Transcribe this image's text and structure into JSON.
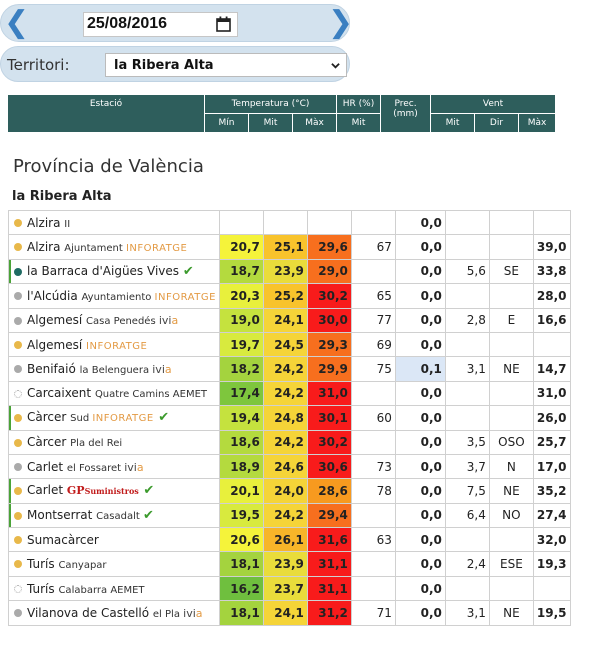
{
  "date": {
    "value": "25/08/2016"
  },
  "territory": {
    "label": "Territori:",
    "selected": "la Ribera Alta"
  },
  "header": {
    "station": "Estació",
    "temperature": "Temperatura (°C)",
    "humidity": "HR (%)",
    "precipitation": "Prec. (mm)",
    "wind": "Vent",
    "min": "Mín",
    "mid": "Mit",
    "max": "Màx",
    "hr_mid": "Mit",
    "wind_mid": "Mit",
    "wind_dir": "Dir",
    "wind_max": "Màx"
  },
  "province": "Província de València",
  "region": "la Ribera Alta",
  "colors": {
    "header_bg": "#2e5e5c",
    "bar_bg": "#d3e2ee",
    "accent": "#3a7fc1"
  },
  "rows": [
    {
      "name": "Alzira",
      "sub": "II",
      "src": "",
      "dot": "#e8b84a",
      "tmin": "",
      "tmit": "",
      "tmax": "",
      "hr": "",
      "prec": "0,0",
      "vm": "",
      "vd": "",
      "vx": "",
      "check": false
    },
    {
      "name": "Alzira",
      "sub": "Ajuntament",
      "src": "INFORATGE",
      "dot": "#e8b84a",
      "tmin": "20,7",
      "tmit": "25,1",
      "tmax": "29,6",
      "hr": "67",
      "prec": "0,0",
      "vm": "",
      "vd": "",
      "vx": "39,0",
      "check": false
    },
    {
      "name": "la Barraca d'Aigües Vives",
      "sub": "",
      "src": "",
      "dot": "#1f6b63",
      "tmin": "18,7",
      "tmit": "23,9",
      "tmax": "29,0",
      "hr": "",
      "prec": "0,0",
      "vm": "5,6",
      "vd": "SE",
      "vx": "33,8",
      "check": true
    },
    {
      "name": "l'Alcúdia",
      "sub": "Ayuntamiento",
      "src": "INFORATGE",
      "dot": "#aaaaaa",
      "tmin": "20,3",
      "tmit": "25,2",
      "tmax": "30,2",
      "hr": "65",
      "prec": "0,0",
      "vm": "",
      "vd": "",
      "vx": "28,0",
      "check": false
    },
    {
      "name": "Algemesí",
      "sub": "Casa Penedés",
      "src": "ivia",
      "dot": "#aaaaaa",
      "tmin": "19,0",
      "tmit": "24,1",
      "tmax": "30,0",
      "hr": "77",
      "prec": "0,0",
      "vm": "2,8",
      "vd": "E",
      "vx": "16,6",
      "check": false
    },
    {
      "name": "Algemesí",
      "sub": "",
      "src": "INFORATGE",
      "dot": "#e8b84a",
      "tmin": "19,7",
      "tmit": "24,5",
      "tmax": "29,3",
      "hr": "69",
      "prec": "0,0",
      "vm": "",
      "vd": "",
      "vx": "",
      "check": false
    },
    {
      "name": "Benifaió",
      "sub": "la Belenguera",
      "src": "ivia",
      "dot": "#aaaaaa",
      "tmin": "18,2",
      "tmit": "24,2",
      "tmax": "29,9",
      "hr": "75",
      "prec": "0,1",
      "vm": "3,1",
      "vd": "NE",
      "vx": "14,7",
      "check": false
    },
    {
      "name": "Carcaixent",
      "sub": "Quatre Camins",
      "src": "AEMET",
      "dot": "none",
      "tmin": "17,4",
      "tmit": "24,2",
      "tmax": "31,0",
      "hr": "",
      "prec": "0,0",
      "vm": "",
      "vd": "",
      "vx": "31,0",
      "check": false
    },
    {
      "name": "Càrcer",
      "sub": "Sud",
      "src": "INFORATGE",
      "dot": "#e8b84a",
      "tmin": "19,4",
      "tmit": "24,8",
      "tmax": "30,1",
      "hr": "60",
      "prec": "0,0",
      "vm": "",
      "vd": "",
      "vx": "26,0",
      "check": true
    },
    {
      "name": "Càrcer",
      "sub": "Pla del Rei",
      "src": "",
      "dot": "#e8b84a",
      "tmin": "18,6",
      "tmit": "24,2",
      "tmax": "30,2",
      "hr": "",
      "prec": "0,0",
      "vm": "3,5",
      "vd": "OSO",
      "vx": "25,7",
      "check": false
    },
    {
      "name": "Carlet",
      "sub": "el Fossaret",
      "src": "ivia",
      "dot": "#aaaaaa",
      "tmin": "18,9",
      "tmit": "24,6",
      "tmax": "30,6",
      "hr": "73",
      "prec": "0,0",
      "vm": "3,7",
      "vd": "N",
      "vx": "17,0",
      "check": false
    },
    {
      "name": "Carlet",
      "sub": "",
      "src": "GP",
      "dot": "#e8b84a",
      "tmin": "20,1",
      "tmit": "24,0",
      "tmax": "28,6",
      "hr": "78",
      "prec": "0,0",
      "vm": "7,5",
      "vd": "NE",
      "vx": "35,2",
      "check": true
    },
    {
      "name": "Montserrat",
      "sub": "Casadalt",
      "src": "",
      "dot": "#e8b84a",
      "tmin": "19,5",
      "tmit": "24,2",
      "tmax": "29,4",
      "hr": "",
      "prec": "0,0",
      "vm": "6,4",
      "vd": "NO",
      "vx": "27,4",
      "check": true
    },
    {
      "name": "Sumacàrcer",
      "sub": "",
      "src": "",
      "dot": "#e8b84a",
      "tmin": "20,6",
      "tmit": "26,1",
      "tmax": "31,6",
      "hr": "63",
      "prec": "0,0",
      "vm": "",
      "vd": "",
      "vx": "32,0",
      "check": false
    },
    {
      "name": "Turís",
      "sub": "Canyapar",
      "src": "",
      "dot": "#e8b84a",
      "tmin": "18,1",
      "tmit": "23,9",
      "tmax": "31,1",
      "hr": "",
      "prec": "0,0",
      "vm": "2,4",
      "vd": "ESE",
      "vx": "19,3",
      "check": false
    },
    {
      "name": "Turís",
      "sub": "Calabarra",
      "src": "AEMET",
      "dot": "none",
      "tmin": "16,2",
      "tmit": "23,7",
      "tmax": "31,1",
      "hr": "",
      "prec": "0,0",
      "vm": "",
      "vd": "",
      "vx": "",
      "check": false
    },
    {
      "name": "Vilanova de Castelló",
      "sub": "el Pla",
      "src": "ivia",
      "dot": "#aaaaaa",
      "tmin": "18,1",
      "tmit": "24,1",
      "tmax": "31,2",
      "hr": "71",
      "prec": "0,0",
      "vm": "3,1",
      "vd": "NE",
      "vx": "19,5",
      "check": false
    }
  ]
}
